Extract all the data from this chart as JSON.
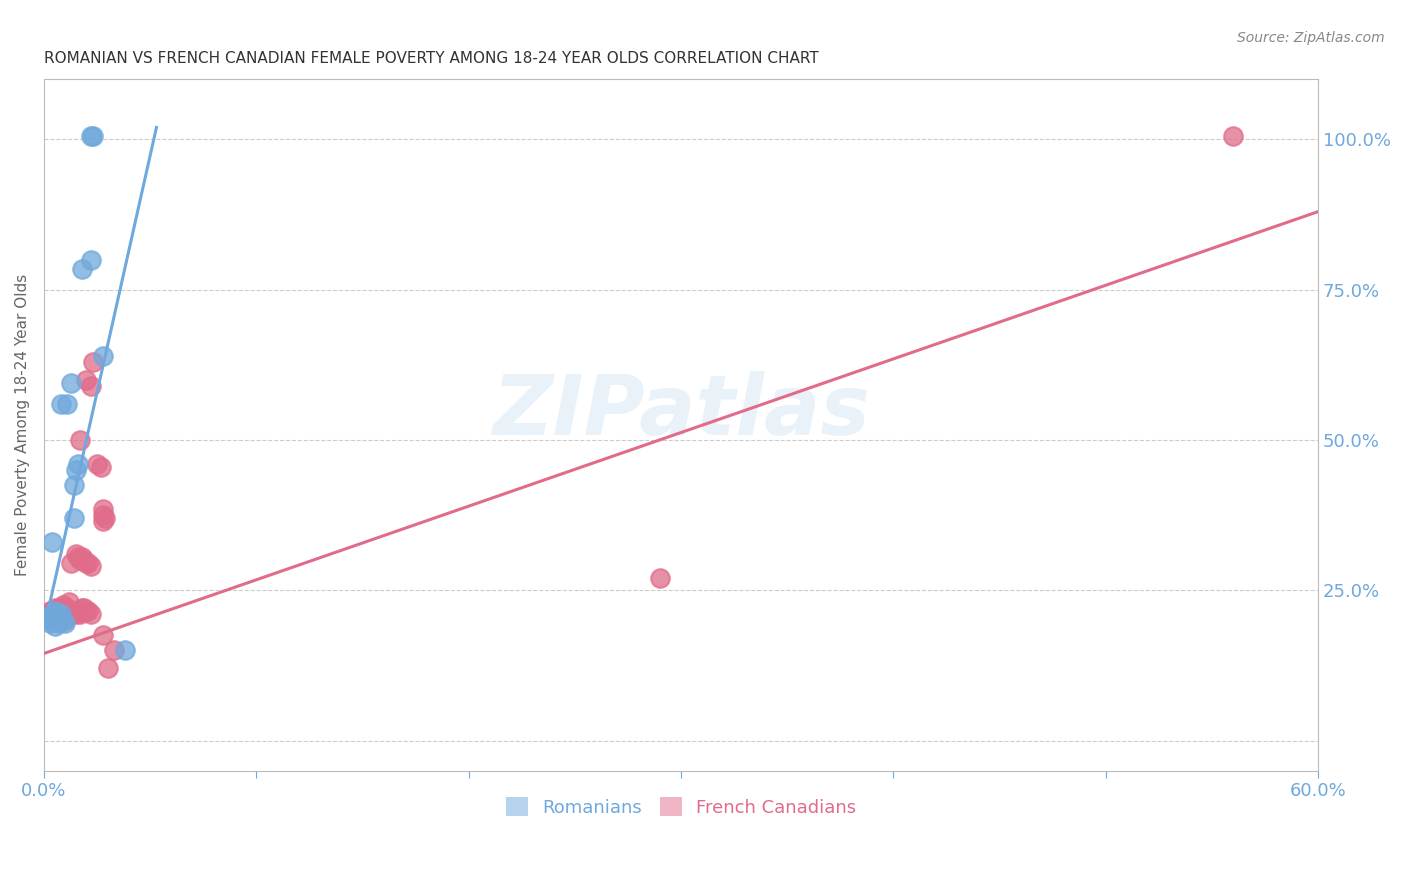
{
  "title": "ROMANIAN VS FRENCH CANADIAN FEMALE POVERTY AMONG 18-24 YEAR OLDS CORRELATION CHART",
  "source": "Source: ZipAtlas.com",
  "ylabel": "Female Poverty Among 18-24 Year Olds",
  "xlim": [
    0.0,
    0.6
  ],
  "ylim": [
    -0.05,
    1.1
  ],
  "xticks": [
    0.0,
    0.1,
    0.2,
    0.3,
    0.4,
    0.5,
    0.6
  ],
  "xticklabels": [
    "0.0%",
    "",
    "",
    "",
    "",
    "",
    "60.0%"
  ],
  "yticks_right": [
    0.0,
    0.25,
    0.5,
    0.75,
    1.0
  ],
  "yticklabels_right": [
    "",
    "25.0%",
    "50.0%",
    "75.0%",
    "100.0%"
  ],
  "romanian_color": "#6fa8dc",
  "french_canadian_color": "#e06c8a",
  "watermark": "ZIPatlas",
  "background_color": "#ffffff",
  "grid_color": "#cccccc",
  "axis_color": "#bbbbbb",
  "romanian_points": [
    [
      0.003,
      0.195
    ],
    [
      0.003,
      0.205
    ],
    [
      0.004,
      0.2
    ],
    [
      0.004,
      0.21
    ],
    [
      0.005,
      0.19
    ],
    [
      0.005,
      0.215
    ],
    [
      0.006,
      0.21
    ],
    [
      0.006,
      0.2
    ],
    [
      0.007,
      0.2
    ],
    [
      0.007,
      0.195
    ],
    [
      0.008,
      0.21
    ],
    [
      0.009,
      0.2
    ],
    [
      0.01,
      0.195
    ],
    [
      0.011,
      0.56
    ],
    [
      0.013,
      0.595
    ],
    [
      0.014,
      0.37
    ],
    [
      0.014,
      0.425
    ],
    [
      0.015,
      0.45
    ],
    [
      0.016,
      0.46
    ],
    [
      0.018,
      0.785
    ],
    [
      0.022,
      0.8
    ],
    [
      0.022,
      1.005
    ],
    [
      0.023,
      1.005
    ],
    [
      0.028,
      0.64
    ],
    [
      0.038,
      0.15
    ],
    [
      0.004,
      0.33
    ],
    [
      0.008,
      0.56
    ]
  ],
  "french_canadian_points": [
    [
      0.002,
      0.21
    ],
    [
      0.003,
      0.205
    ],
    [
      0.003,
      0.215
    ],
    [
      0.004,
      0.2
    ],
    [
      0.004,
      0.21
    ],
    [
      0.005,
      0.22
    ],
    [
      0.005,
      0.2
    ],
    [
      0.006,
      0.215
    ],
    [
      0.006,
      0.21
    ],
    [
      0.007,
      0.22
    ],
    [
      0.007,
      0.215
    ],
    [
      0.008,
      0.22
    ],
    [
      0.008,
      0.21
    ],
    [
      0.009,
      0.225
    ],
    [
      0.009,
      0.22
    ],
    [
      0.01,
      0.215
    ],
    [
      0.01,
      0.2
    ],
    [
      0.011,
      0.22
    ],
    [
      0.011,
      0.215
    ],
    [
      0.012,
      0.23
    ],
    [
      0.013,
      0.21
    ],
    [
      0.014,
      0.215
    ],
    [
      0.015,
      0.21
    ],
    [
      0.016,
      0.215
    ],
    [
      0.017,
      0.21
    ],
    [
      0.018,
      0.22
    ],
    [
      0.019,
      0.22
    ],
    [
      0.02,
      0.215
    ],
    [
      0.021,
      0.215
    ],
    [
      0.022,
      0.21
    ],
    [
      0.013,
      0.295
    ],
    [
      0.015,
      0.31
    ],
    [
      0.016,
      0.305
    ],
    [
      0.017,
      0.3
    ],
    [
      0.018,
      0.305
    ],
    [
      0.019,
      0.3
    ],
    [
      0.02,
      0.295
    ],
    [
      0.021,
      0.295
    ],
    [
      0.022,
      0.29
    ],
    [
      0.017,
      0.5
    ],
    [
      0.02,
      0.6
    ],
    [
      0.022,
      0.59
    ],
    [
      0.023,
      0.63
    ],
    [
      0.025,
      0.46
    ],
    [
      0.027,
      0.455
    ],
    [
      0.028,
      0.385
    ],
    [
      0.028,
      0.375
    ],
    [
      0.028,
      0.365
    ],
    [
      0.029,
      0.37
    ],
    [
      0.028,
      0.175
    ],
    [
      0.03,
      0.12
    ],
    [
      0.033,
      0.15
    ],
    [
      0.29,
      0.27
    ],
    [
      0.56,
      1.005
    ]
  ],
  "romanian_line": {
    "x0": 0.0,
    "y0": 0.185,
    "x1": 0.053,
    "y1": 1.02
  },
  "french_line": {
    "x0": 0.0,
    "y0": 0.145,
    "x1": 0.6,
    "y1": 0.88
  }
}
